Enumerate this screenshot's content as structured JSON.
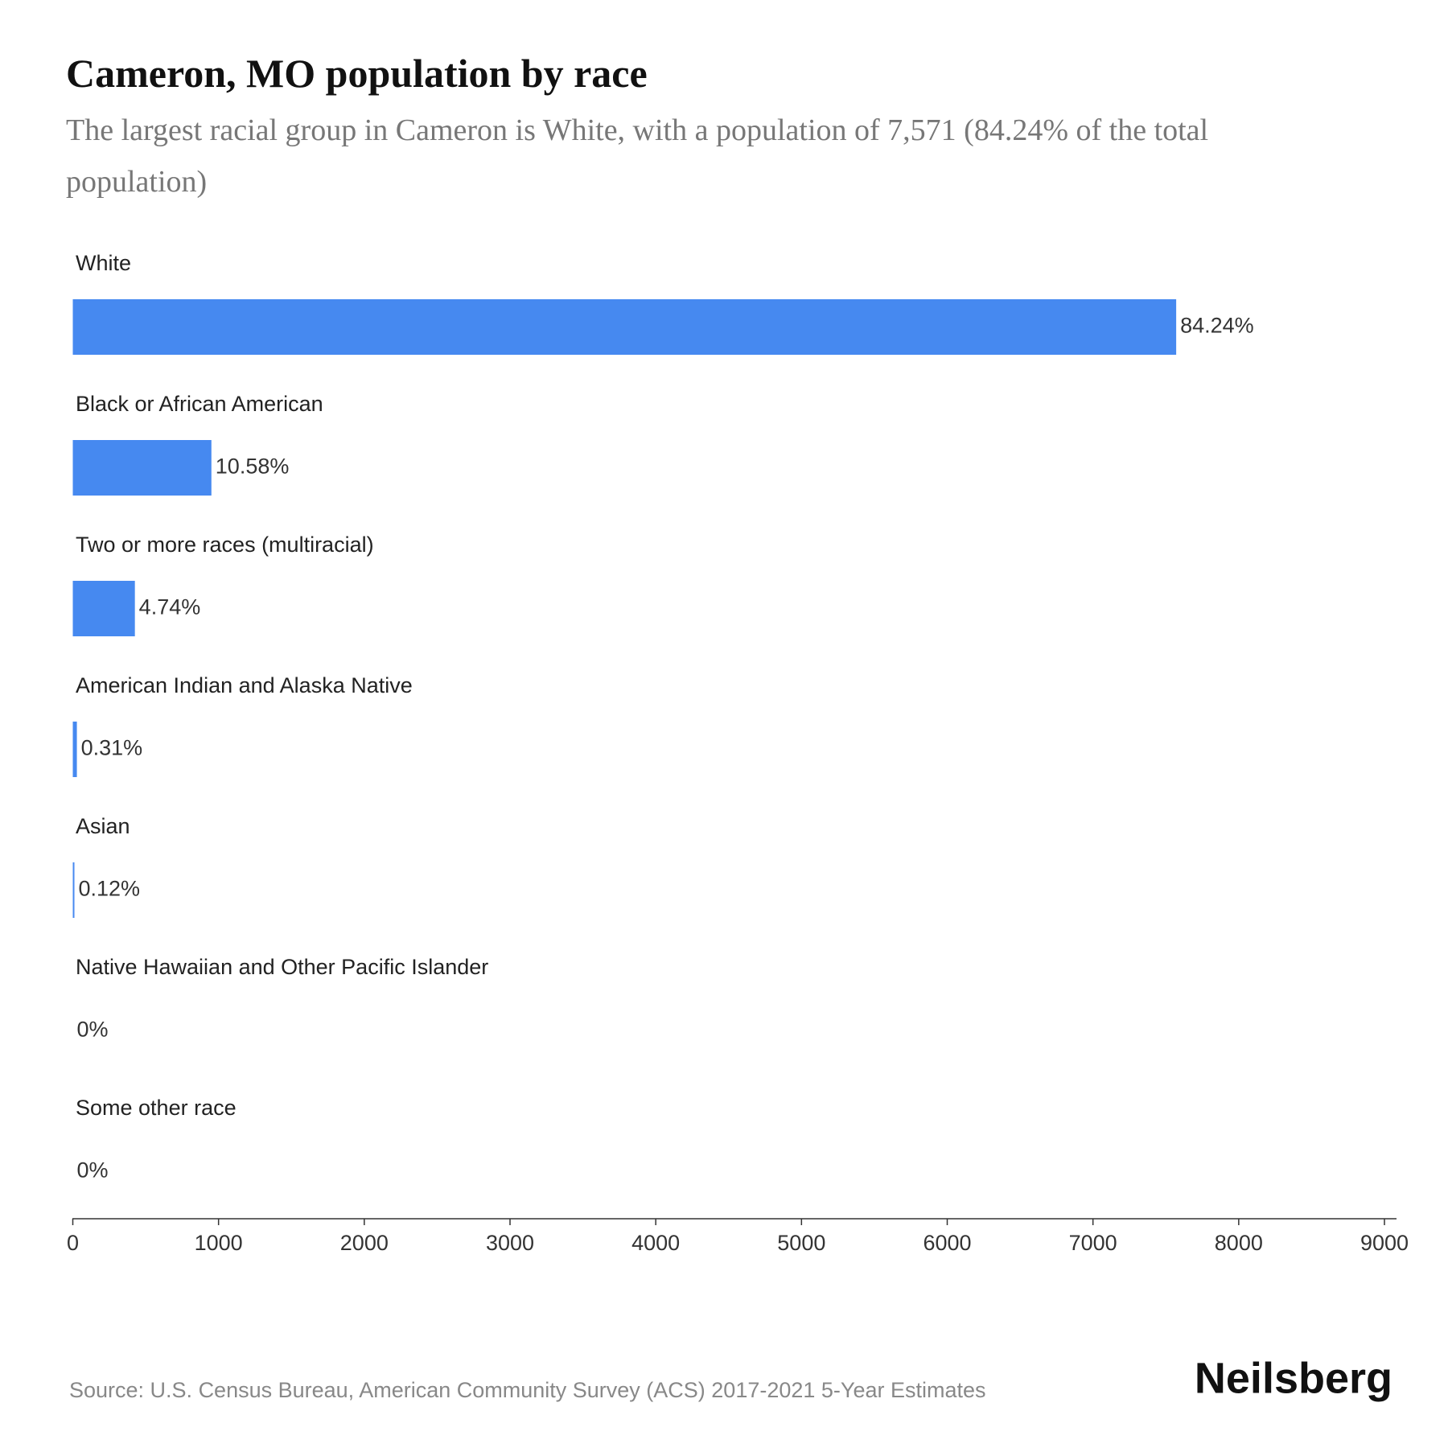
{
  "chart_data": {
    "type": "barh",
    "title": "Cameron, MO population by race",
    "subtitle": "The largest racial group in Cameron is White, with a population of 7,571 (84.24% of the total population)",
    "categories": [
      "White",
      "Black or African American",
      "Two or more races (multiracial)",
      "American Indian and Alaska Native",
      "Asian",
      "Native Hawaiian and Other Pacific Islander",
      "Some other race"
    ],
    "values": [
      7571,
      951,
      426,
      28,
      11,
      0,
      0
    ],
    "value_labels": [
      "84.24%",
      "10.58%",
      "4.74%",
      "0.31%",
      "0.12%",
      "0%",
      "0%"
    ],
    "color": "#4689f0",
    "xlim": [
      0,
      9000
    ],
    "xticks": [
      0,
      1000,
      2000,
      3000,
      4000,
      5000,
      6000,
      7000,
      8000,
      9000
    ],
    "source": "Source: U.S. Census Bureau, American Community Survey (ACS) 2017-2021 5-Year Estimates",
    "brand": "Neilsberg"
  }
}
